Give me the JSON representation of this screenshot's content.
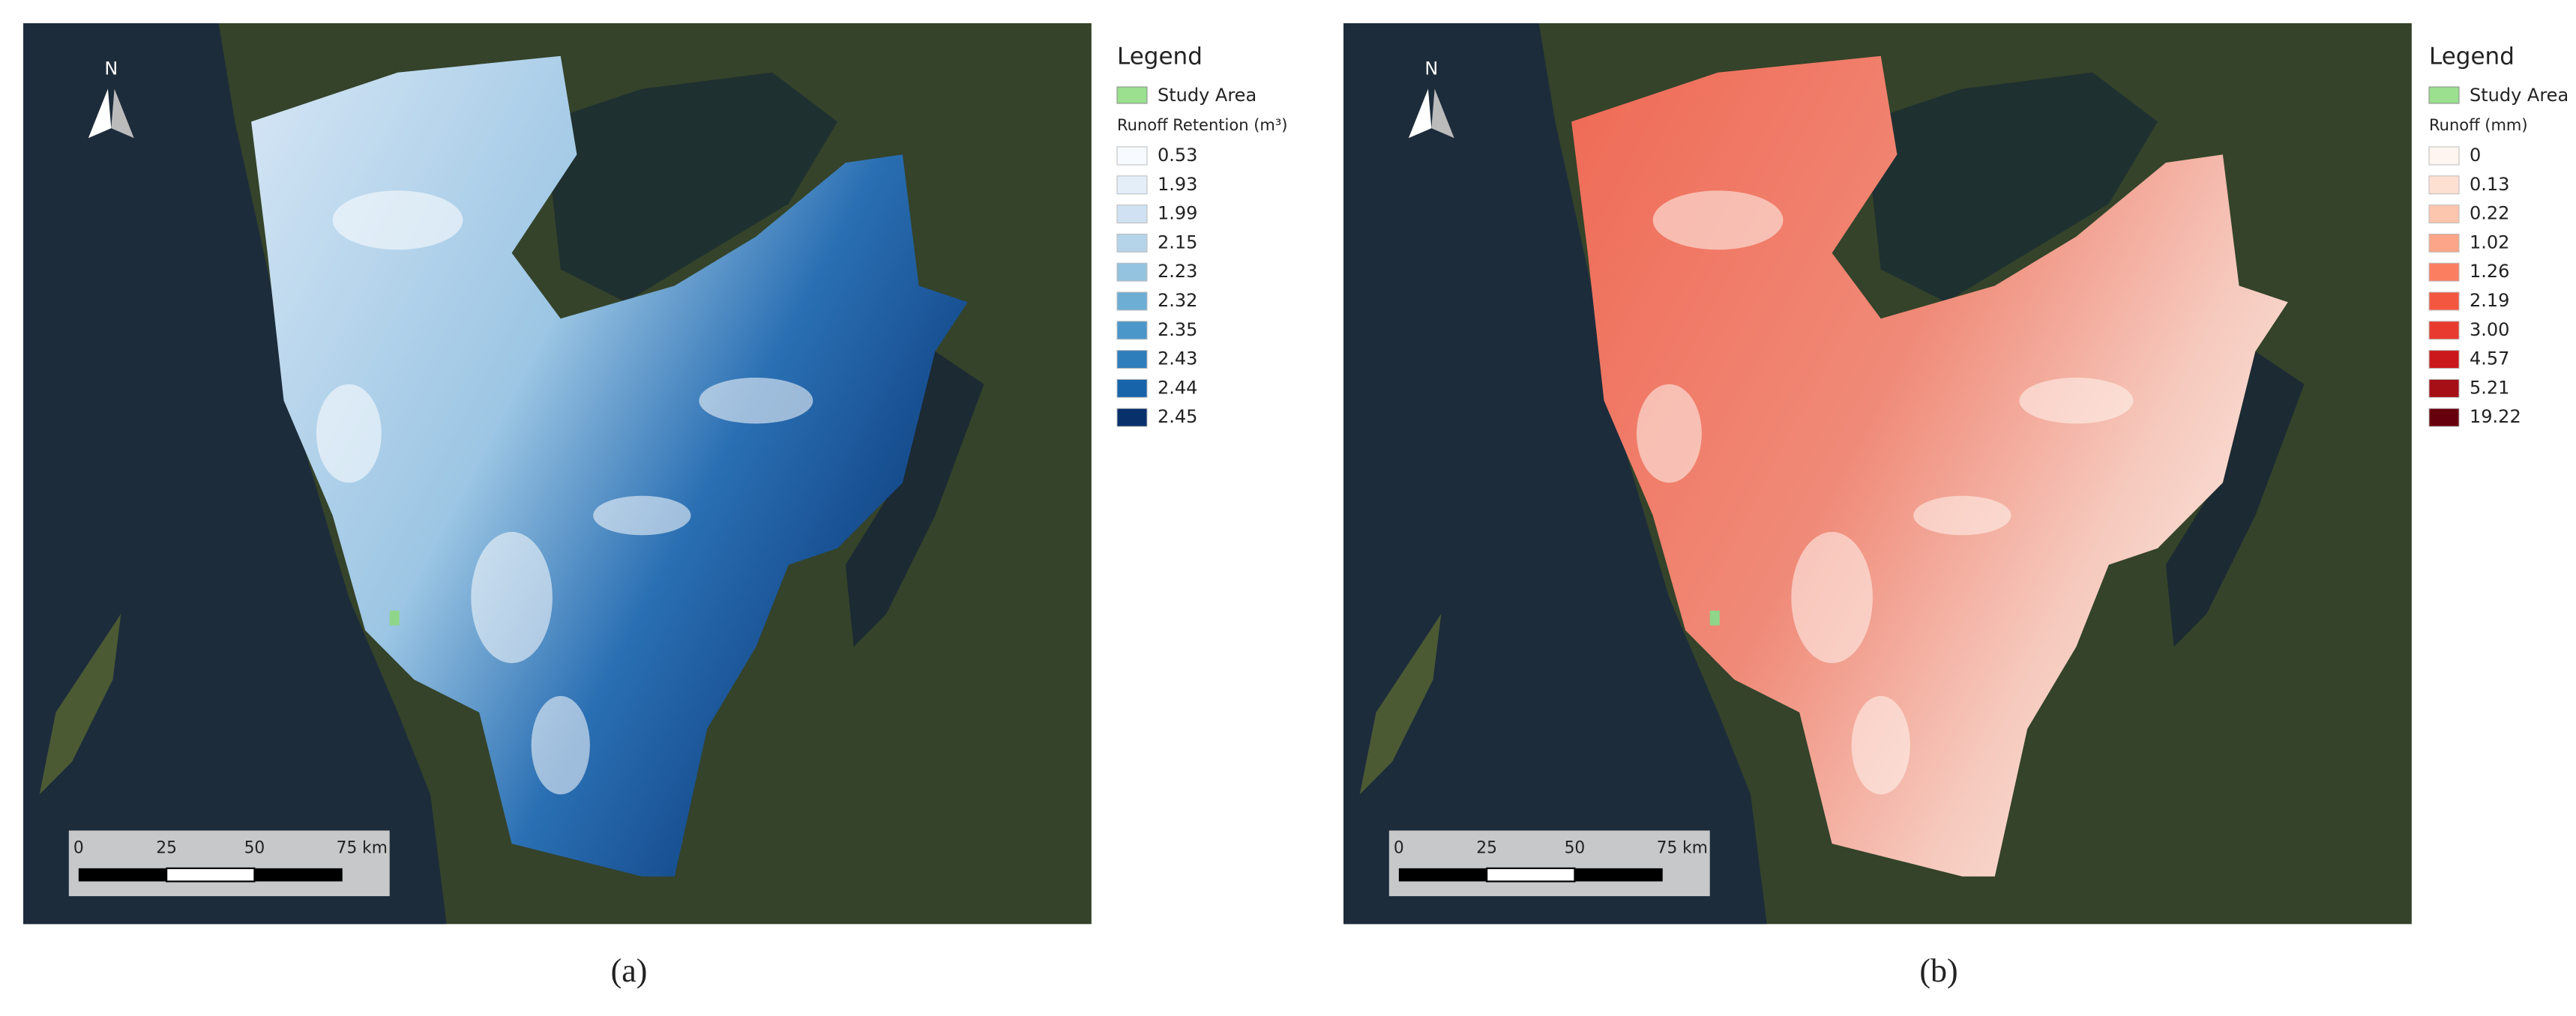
{
  "panels": [
    {
      "caption": "(a)",
      "north": "N",
      "scale_bar": [
        "0",
        "25",
        "50",
        "75 km"
      ],
      "legend": {
        "title": "Legend",
        "study_area": "Study Area",
        "heading": "Runoff Retention (m³)",
        "items": [
          {
            "label": "0.53",
            "color": "#f7fbff"
          },
          {
            "label": "1.93",
            "color": "#e3eef9"
          },
          {
            "label": "1.99",
            "color": "#cfe1f2"
          },
          {
            "label": "2.15",
            "color": "#b5d4e9"
          },
          {
            "label": "2.23",
            "color": "#93c3df"
          },
          {
            "label": "2.32",
            "color": "#6daed5"
          },
          {
            "label": "2.35",
            "color": "#4b97c9"
          },
          {
            "label": "2.43",
            "color": "#2f7ebc"
          },
          {
            "label": "2.44",
            "color": "#1764ab"
          },
          {
            "label": "2.45",
            "color": "#08306b"
          }
        ]
      }
    },
    {
      "caption": "(b)",
      "north": "N",
      "scale_bar": [
        "0",
        "25",
        "50",
        "75 km"
      ],
      "legend": {
        "title": "Legend",
        "study_area": "Study Area",
        "heading": "Runoff (mm)",
        "items": [
          {
            "label": "0",
            "color": "#fff5f0"
          },
          {
            "label": "0.13",
            "color": "#fee0d2"
          },
          {
            "label": "0.22",
            "color": "#fcc5ae"
          },
          {
            "label": "1.02",
            "color": "#fca588"
          },
          {
            "label": "1.26",
            "color": "#fb7e61"
          },
          {
            "label": "2.19",
            "color": "#f4573f"
          },
          {
            "label": "3.00",
            "color": "#e83a2e"
          },
          {
            "label": "4.57",
            "color": "#cb181d"
          },
          {
            "label": "5.21",
            "color": "#a50f15"
          },
          {
            "label": "19.22",
            "color": "#67000d"
          }
        ]
      }
    }
  ]
}
